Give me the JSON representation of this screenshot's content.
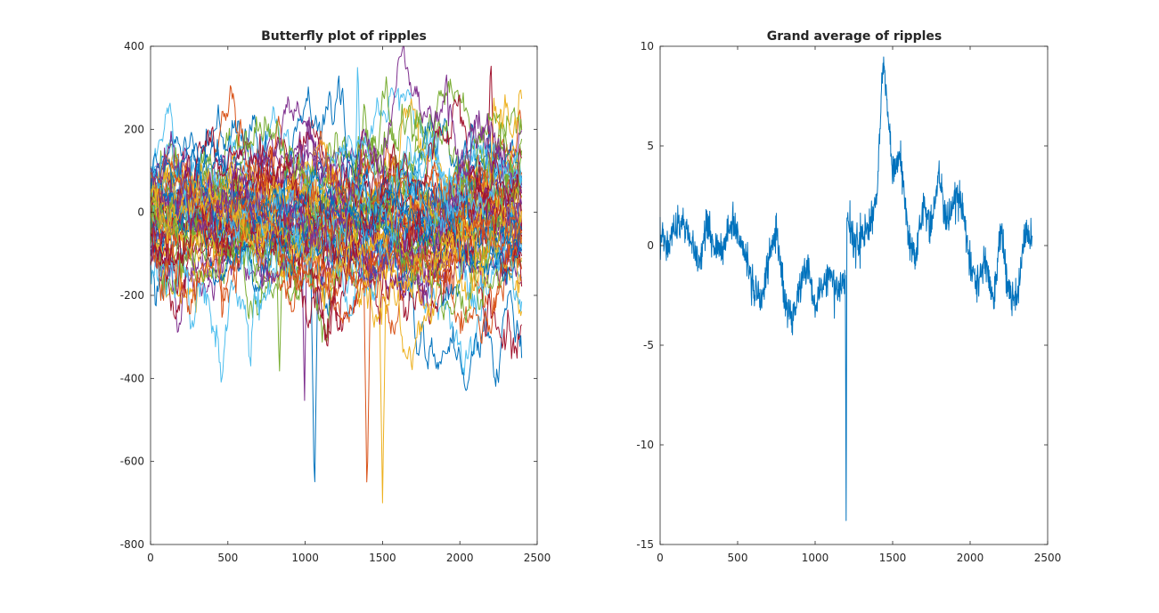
{
  "chart_data": [
    {
      "type": "line",
      "title": "Butterfly plot of ripples",
      "xlabel": "",
      "ylabel": "",
      "xlim": [
        0,
        2500
      ],
      "ylim": [
        -800,
        400
      ],
      "xticks": [
        0,
        500,
        1000,
        1500,
        2000,
        2500
      ],
      "yticks": [
        -800,
        -600,
        -400,
        -200,
        0,
        200,
        400
      ],
      "grid": false,
      "legend": "none",
      "n_samples": 2401,
      "series_colors": [
        "#0072BD",
        "#D95319",
        "#EDB120",
        "#7E2F8E",
        "#77AC30",
        "#4DBEEE",
        "#A2142F"
      ],
      "series": [
        {
          "values_summary": "about 60 overlapping noisy traces, centered near 0, mostly within -200..200",
          "x": [
            0,
            300,
            600,
            900,
            1200,
            1500,
            1800,
            2100,
            2400
          ],
          "values": [
            60,
            -120,
            40,
            -80,
            100,
            -60,
            120,
            -40,
            20
          ]
        },
        {
          "values": [
            120,
            330,
            80,
            -200,
            150,
            -100,
            80,
            150,
            60
          ],
          "x": [
            0,
            300,
            600,
            900,
            1200,
            1500,
            1800,
            2100,
            2400
          ]
        },
        {
          "values": [
            -150,
            -300,
            -200,
            -100,
            -150,
            -50,
            -180,
            -400,
            -100
          ],
          "x": [
            0,
            300,
            600,
            900,
            1200,
            1500,
            1800,
            2100,
            2400
          ]
        }
      ],
      "annotations": [
        {
          "x": 1060,
          "y": -700
        },
        {
          "x": 1400,
          "y": -700
        },
        {
          "x": 1500,
          "y": -700
        },
        {
          "x": 995,
          "y": -480
        },
        {
          "x": 833,
          "y": -400
        },
        {
          "x": 1340,
          "y": 390
        },
        {
          "x": 2200,
          "y": 380
        }
      ]
    },
    {
      "type": "line",
      "title": "Grand average of ripples",
      "xlabel": "",
      "ylabel": "",
      "xlim": [
        0,
        2500
      ],
      "ylim": [
        -15,
        10
      ],
      "xticks": [
        0,
        500,
        1000,
        1500,
        2000,
        2500
      ],
      "yticks": [
        -15,
        -10,
        -5,
        0,
        5,
        10
      ],
      "grid": false,
      "legend": "none",
      "color": "#0072BD",
      "x": [
        0,
        50,
        100,
        150,
        200,
        250,
        300,
        350,
        400,
        450,
        500,
        550,
        600,
        650,
        700,
        750,
        800,
        850,
        900,
        950,
        1000,
        1050,
        1100,
        1150,
        1195,
        1200,
        1205,
        1250,
        1300,
        1350,
        1400,
        1440,
        1500,
        1550,
        1600,
        1650,
        1700,
        1750,
        1800,
        1850,
        1900,
        1950,
        2000,
        2050,
        2100,
        2150,
        2200,
        2250,
        2300,
        2350,
        2400
      ],
      "values": [
        0.5,
        0.0,
        1.0,
        1.0,
        0.2,
        -1.0,
        1.0,
        0.0,
        -0.5,
        1.0,
        0.5,
        -0.5,
        -2.0,
        -3.0,
        -1.0,
        1.0,
        -2.5,
        -4.0,
        -2.0,
        -1.0,
        -3.0,
        -2.0,
        -1.5,
        -2.5,
        -1.5,
        -13.8,
        1.5,
        0.0,
        0.5,
        1.0,
        2.5,
        9.5,
        3.5,
        4.5,
        0.5,
        -0.5,
        2.0,
        1.0,
        3.5,
        1.0,
        2.5,
        2.0,
        -1.0,
        -2.0,
        -0.5,
        -3.0,
        1.0,
        -2.5,
        -3.0,
        0.5,
        0.5
      ]
    }
  ]
}
